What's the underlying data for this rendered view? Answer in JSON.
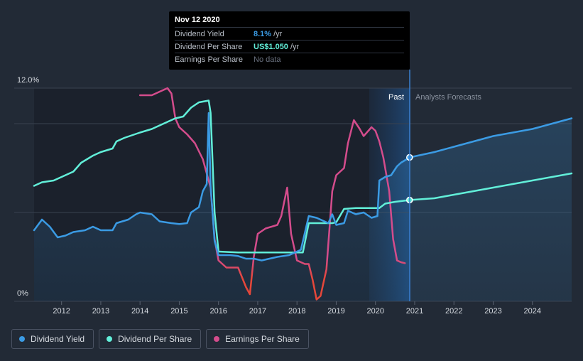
{
  "tooltip": {
    "date": "Nov 12 2020",
    "rows": [
      {
        "label": "Dividend Yield",
        "value": "8.1%",
        "unit": "/yr"
      },
      {
        "label": "Dividend Per Share",
        "value": "US$1.050",
        "unit": "/yr"
      },
      {
        "label": "Earnings Per Share",
        "value": "No data",
        "unit": ""
      }
    ]
  },
  "legend": [
    {
      "label": "Dividend Yield",
      "color": "#3b9be4"
    },
    {
      "label": "Dividend Per Share",
      "color": "#62efd9"
    },
    {
      "label": "Earnings Per Share",
      "color": "#d44c8c"
    }
  ],
  "chart_data": {
    "type": "line",
    "title": "",
    "y_axis_labels": {
      "top": "12.0%",
      "bottom": "0%"
    },
    "ylim": [
      0,
      12
    ],
    "xlim": [
      2011.3,
      2025.0
    ],
    "x_ticks": [
      "2012",
      "2013",
      "2014",
      "2015",
      "2016",
      "2017",
      "2018",
      "2019",
      "2020",
      "2021",
      "2022",
      "2023",
      "2024"
    ],
    "regions": {
      "past_label": "Past",
      "forecast_label": "Analysts Forecasts",
      "divider_x": 2020.87
    },
    "series": [
      {
        "name": "Dividend Yield",
        "color": "#3b9be4",
        "points": [
          [
            2011.3,
            4.0
          ],
          [
            2011.5,
            4.6
          ],
          [
            2011.7,
            4.2
          ],
          [
            2011.9,
            3.6
          ],
          [
            2012.1,
            3.7
          ],
          [
            2012.3,
            3.9
          ],
          [
            2012.6,
            4.0
          ],
          [
            2012.8,
            4.2
          ],
          [
            2013.0,
            4.0
          ],
          [
            2013.3,
            4.0
          ],
          [
            2013.4,
            4.4
          ],
          [
            2013.7,
            4.6
          ],
          [
            2013.9,
            4.9
          ],
          [
            2014.0,
            5.0
          ],
          [
            2014.3,
            4.9
          ],
          [
            2014.5,
            4.5
          ],
          [
            2014.8,
            4.4
          ],
          [
            2015.0,
            4.35
          ],
          [
            2015.2,
            4.4
          ],
          [
            2015.3,
            5.0
          ],
          [
            2015.5,
            5.3
          ],
          [
            2015.6,
            6.2
          ],
          [
            2015.7,
            6.6
          ],
          [
            2015.75,
            10.6
          ],
          [
            2015.8,
            6.5
          ],
          [
            2015.9,
            3.4
          ],
          [
            2016.0,
            2.6
          ],
          [
            2016.3,
            2.6
          ],
          [
            2016.5,
            2.55
          ],
          [
            2016.7,
            2.4
          ],
          [
            2016.9,
            2.4
          ],
          [
            2017.1,
            2.3
          ],
          [
            2017.3,
            2.4
          ],
          [
            2017.5,
            2.5
          ],
          [
            2017.8,
            2.6
          ],
          [
            2018.1,
            2.9
          ],
          [
            2018.3,
            4.8
          ],
          [
            2018.5,
            4.7
          ],
          [
            2018.8,
            4.4
          ],
          [
            2018.9,
            4.9
          ],
          [
            2019.0,
            4.3
          ],
          [
            2019.2,
            4.4
          ],
          [
            2019.3,
            5.1
          ],
          [
            2019.5,
            4.9
          ],
          [
            2019.7,
            5.0
          ],
          [
            2019.9,
            4.7
          ],
          [
            2020.05,
            4.8
          ],
          [
            2020.1,
            6.8
          ],
          [
            2020.25,
            7.0
          ],
          [
            2020.4,
            7.1
          ],
          [
            2020.55,
            7.6
          ],
          [
            2020.65,
            7.8
          ],
          [
            2020.8,
            8.0
          ],
          [
            2020.83,
            8.2
          ],
          [
            2020.87,
            8.1
          ]
        ]
      },
      {
        "name": "Dividend Yield Forecast",
        "color": "#3b9be4",
        "points": [
          [
            2020.87,
            8.1
          ],
          [
            2021.5,
            8.4
          ],
          [
            2022.0,
            8.7
          ],
          [
            2022.5,
            9.0
          ],
          [
            2023.0,
            9.3
          ],
          [
            2023.5,
            9.5
          ],
          [
            2024.0,
            9.7
          ],
          [
            2024.5,
            10.0
          ],
          [
            2025.0,
            10.3
          ]
        ]
      },
      {
        "name": "Dividend Per Share",
        "color": "#62efd9",
        "points": [
          [
            2011.3,
            6.5
          ],
          [
            2011.5,
            6.7
          ],
          [
            2011.8,
            6.8
          ],
          [
            2012.0,
            7.0
          ],
          [
            2012.3,
            7.3
          ],
          [
            2012.5,
            7.8
          ],
          [
            2012.8,
            8.2
          ],
          [
            2013.0,
            8.4
          ],
          [
            2013.3,
            8.6
          ],
          [
            2013.4,
            9.0
          ],
          [
            2013.6,
            9.2
          ],
          [
            2014.0,
            9.5
          ],
          [
            2014.3,
            9.7
          ],
          [
            2014.6,
            10.0
          ],
          [
            2014.9,
            10.3
          ],
          [
            2015.1,
            10.4
          ],
          [
            2015.3,
            10.9
          ],
          [
            2015.5,
            11.2
          ],
          [
            2015.75,
            11.3
          ],
          [
            2015.8,
            10.6
          ],
          [
            2015.9,
            5.0
          ],
          [
            2016.0,
            2.8
          ],
          [
            2016.5,
            2.75
          ],
          [
            2017.0,
            2.75
          ],
          [
            2017.5,
            2.75
          ],
          [
            2018.0,
            2.75
          ],
          [
            2018.15,
            2.75
          ],
          [
            2018.3,
            4.4
          ],
          [
            2018.6,
            4.4
          ],
          [
            2018.9,
            4.4
          ],
          [
            2019.0,
            4.45
          ],
          [
            2019.2,
            5.2
          ],
          [
            2019.5,
            5.25
          ],
          [
            2019.8,
            5.25
          ],
          [
            2020.1,
            5.25
          ],
          [
            2020.25,
            5.5
          ],
          [
            2020.5,
            5.6
          ],
          [
            2020.87,
            5.7
          ]
        ]
      },
      {
        "name": "Dividend Per Share Forecast",
        "color": "#62efd9",
        "points": [
          [
            2020.87,
            5.7
          ],
          [
            2021.5,
            5.8
          ],
          [
            2022.0,
            6.0
          ],
          [
            2022.5,
            6.2
          ],
          [
            2023.0,
            6.4
          ],
          [
            2023.5,
            6.6
          ],
          [
            2024.0,
            6.8
          ],
          [
            2024.5,
            7.0
          ],
          [
            2025.0,
            7.2
          ]
        ]
      },
      {
        "name": "Earnings Per Share",
        "color": "#d44c8c",
        "points": [
          [
            2014.0,
            11.6
          ],
          [
            2014.3,
            11.6
          ],
          [
            2014.5,
            11.8
          ],
          [
            2014.7,
            12.0
          ],
          [
            2014.8,
            11.7
          ],
          [
            2014.9,
            10.3
          ],
          [
            2015.0,
            9.8
          ],
          [
            2015.2,
            9.4
          ],
          [
            2015.4,
            8.9
          ],
          [
            2015.6,
            8.0
          ],
          [
            2015.8,
            6.4
          ],
          [
            2015.9,
            3.5
          ],
          [
            2016.0,
            2.3
          ],
          [
            2016.2,
            1.9
          ],
          [
            2016.5,
            1.9
          ],
          [
            2016.7,
            0.8
          ],
          [
            2016.8,
            0.4
          ],
          [
            2016.9,
            2.5
          ],
          [
            2017.0,
            3.8
          ],
          [
            2017.2,
            4.1
          ],
          [
            2017.5,
            4.3
          ],
          [
            2017.6,
            4.8
          ],
          [
            2017.75,
            6.4
          ],
          [
            2017.85,
            3.8
          ],
          [
            2018.0,
            2.3
          ],
          [
            2018.2,
            2.1
          ],
          [
            2018.3,
            2.1
          ],
          [
            2018.4,
            1.2
          ],
          [
            2018.5,
            0.1
          ],
          [
            2018.6,
            0.3
          ],
          [
            2018.75,
            1.8
          ],
          [
            2018.9,
            6.2
          ],
          [
            2019.0,
            7.1
          ],
          [
            2019.2,
            7.5
          ],
          [
            2019.3,
            8.9
          ],
          [
            2019.45,
            10.2
          ],
          [
            2019.6,
            9.7
          ],
          [
            2019.7,
            9.3
          ],
          [
            2019.9,
            9.8
          ],
          [
            2020.0,
            9.6
          ],
          [
            2020.1,
            9.0
          ],
          [
            2020.2,
            8.1
          ],
          [
            2020.35,
            6.2
          ],
          [
            2020.45,
            3.5
          ],
          [
            2020.55,
            2.3
          ],
          [
            2020.65,
            2.2
          ],
          [
            2020.75,
            2.15
          ]
        ]
      }
    ],
    "markers": [
      {
        "series": "Dividend Yield",
        "x": 2020.87,
        "y": 8.1
      },
      {
        "series": "Dividend Per Share",
        "x": 2020.87,
        "y": 5.7
      }
    ]
  }
}
